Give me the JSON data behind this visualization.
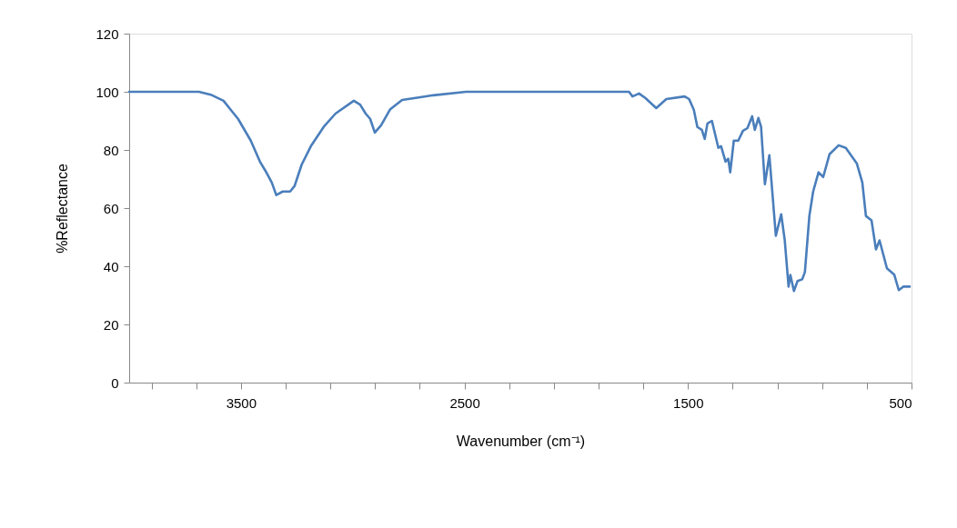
{
  "chart_data": {
    "type": "line",
    "xlabel": "Wavenumber (cm⁻¹)",
    "ylabel": "%Reflectance",
    "xlim": [
      4000,
      500
    ],
    "ylim": [
      0,
      120
    ],
    "xticks": [
      {
        "value": 3900,
        "label": null
      },
      {
        "value": 3700,
        "label": null
      },
      3500,
      {
        "value": 3300,
        "label": null
      },
      {
        "value": 3100,
        "label": null
      },
      {
        "value": 2900,
        "label": null
      },
      {
        "value": 2700,
        "label": null
      },
      2500,
      {
        "value": 2300,
        "label": null
      },
      {
        "value": 2100,
        "label": null
      },
      {
        "value": 1900,
        "label": null
      },
      {
        "value": 1700,
        "label": null
      },
      1500,
      {
        "value": 1300,
        "label": null
      },
      {
        "value": 1100,
        "label": null
      },
      {
        "value": 900,
        "label": null
      },
      {
        "value": 700,
        "label": null
      },
      500
    ],
    "yticks": [
      0,
      20,
      40,
      60,
      80,
      100,
      120
    ],
    "grid": false,
    "marker": "none",
    "line_style": "solid",
    "x": [
      4000,
      3688,
      3635,
      3578,
      3513,
      3456,
      3415,
      3391,
      3362,
      3342,
      3313,
      3280,
      3260,
      3228,
      3187,
      3130,
      3077,
      2995,
      2967,
      2942,
      2922,
      2901,
      2873,
      2832,
      2779,
      2698,
      2640,
      2494,
      1764,
      1748,
      1719,
      1690,
      1642,
      1597,
      1515,
      1495,
      1474,
      1458,
      1438,
      1425,
      1413,
      1393,
      1364,
      1352,
      1332,
      1320,
      1311,
      1295,
      1275,
      1254,
      1234,
      1213,
      1201,
      1185,
      1173,
      1156,
      1136,
      1107,
      1083,
      1067,
      1050,
      1042,
      1026,
      1010,
      989,
      977,
      957,
      940,
      916,
      895,
      867,
      826,
      794,
      745,
      720,
      704,
      679,
      659,
      643,
      610,
      577,
      557,
      537,
      508
    ],
    "series": [
      {
        "color": "#4a7ebb",
        "values": [
          100,
          100,
          99,
          96.9,
          90.7,
          83.2,
          76,
          72.9,
          68.8,
          64.5,
          65.7,
          65.7,
          67.6,
          75,
          81.3,
          87.9,
          92.5,
          96.9,
          95.6,
          92.5,
          90.7,
          86,
          88.5,
          94,
          97.2,
          98.1,
          98.8,
          100,
          100,
          98.4,
          99.4,
          97.8,
          94.4,
          97.5,
          98.4,
          97.5,
          93.8,
          87.9,
          86.9,
          83.8,
          89.1,
          90,
          80.7,
          81.3,
          76,
          77,
          72.3,
          83.2,
          83.2,
          86.6,
          87.5,
          91.6,
          86.9,
          91,
          87.9,
          68.2,
          78.2,
          50.5,
          57.9,
          48.9,
          33,
          37,
          31.5,
          34.9,
          35.5,
          38,
          57.3,
          65.7,
          72.3,
          70.7,
          78.5,
          81.6,
          80.7,
          75.4,
          68.8,
          57.3,
          55.8,
          45.8,
          48.9,
          39.3,
          37.1,
          31.8,
          33,
          33
        ]
      }
    ]
  }
}
